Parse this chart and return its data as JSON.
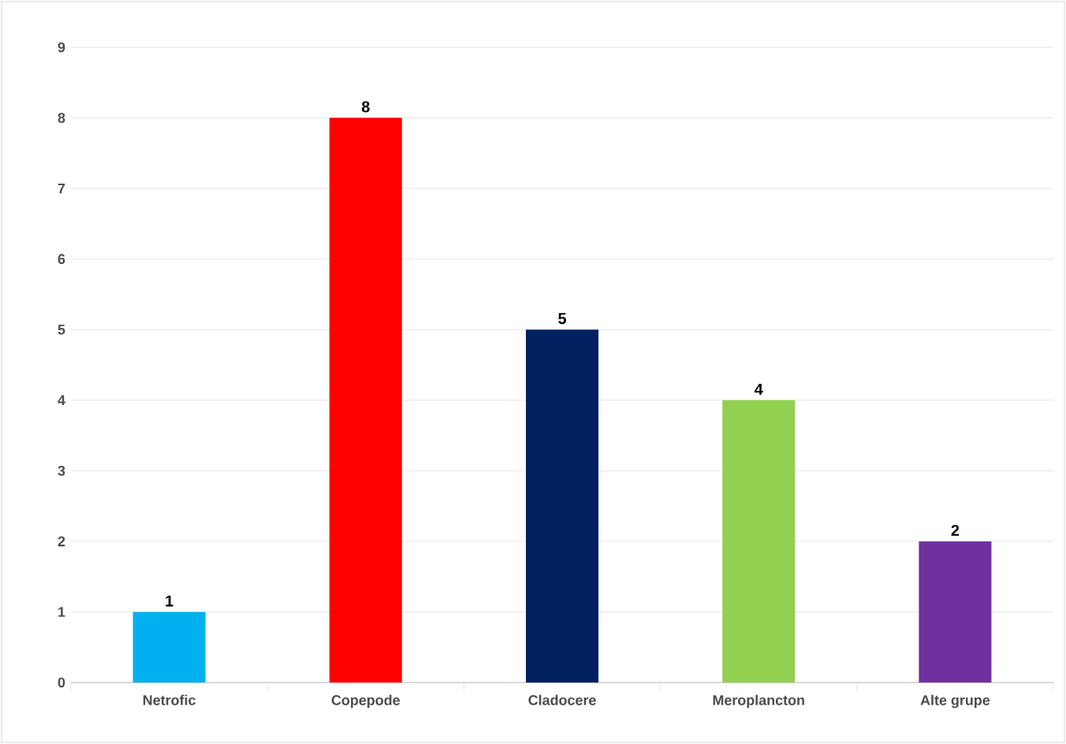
{
  "chart_data": {
    "type": "bar",
    "categories": [
      "Netrofic",
      "Copepode",
      "Cladocere",
      "Meroplancton",
      "Alte grupe"
    ],
    "values": [
      1,
      8,
      5,
      4,
      2
    ],
    "colors": [
      "#00b0f0",
      "#ff0000",
      "#002060",
      "#92d050",
      "#7030a0"
    ],
    "ylim": [
      0,
      9
    ],
    "yticks": [
      0,
      1,
      2,
      3,
      4,
      5,
      6,
      7,
      8,
      9
    ],
    "grid": "y",
    "data_labels": true
  }
}
